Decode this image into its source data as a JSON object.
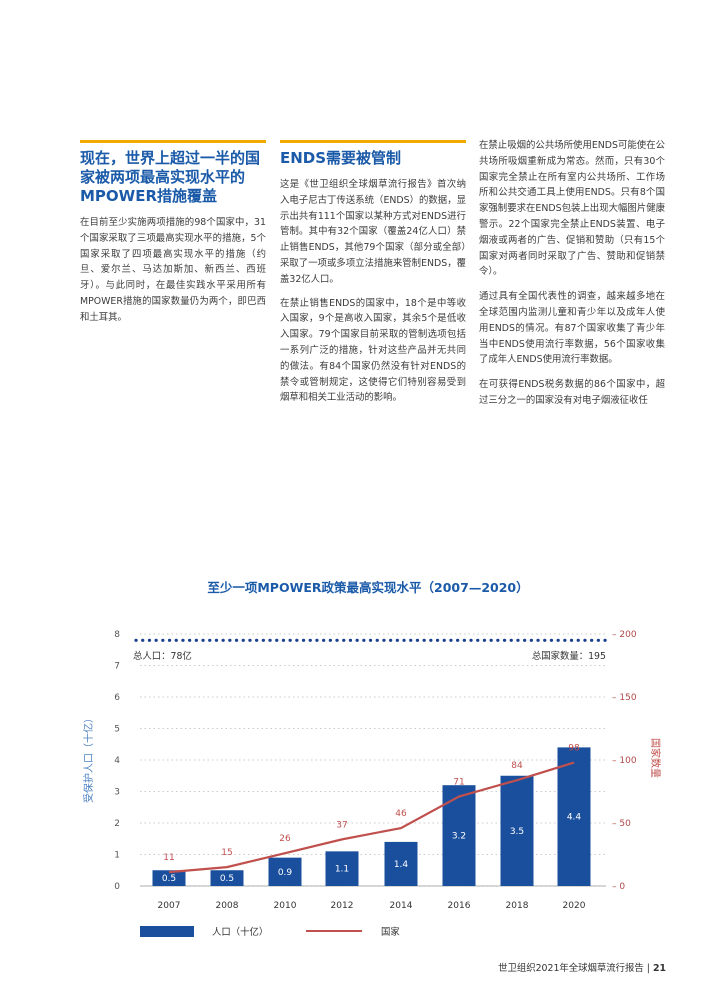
{
  "columns": [
    {
      "heading": "现在，世界上超过一半的国家被两项最高实现水平的MPOWER措施覆盖",
      "paragraphs": [
        "在目前至少实施两项措施的98个国家中，31个国家采取了三项最高实现水平的措施，5个国家采取了四项最高实现水平的措施（约旦、爱尔兰、马达加斯加、新西兰、西班牙）。与此同时，在最佳实践水平采用所有MPOWER措施的国家数量仍为两个，即巴西和土耳其。"
      ]
    },
    {
      "heading": "ENDS需要被管制",
      "paragraphs": [
        "这是《世卫组织全球烟草流行报告》首次纳入电子尼古丁传送系统（ENDS）的数据，显示出共有111个国家以某种方式对ENDS进行管制。其中有32个国家（覆盖24亿人口）禁止销售ENDS，其他79个国家（部分或全部）采取了一项或多项立法措施来管制ENDS，覆盖32亿人口。",
        "在禁止销售ENDS的国家中，18个是中等收入国家，9个是高收入国家，其余5个是低收入国家。79个国家目前采取的管制选项包括一系列广泛的措施，针对这些产品并无共同的做法。有84个国家仍然没有针对ENDS的禁令或管制规定，这使得它们特别容易受到烟草和相关工业活动的影响。"
      ]
    },
    {
      "heading": "",
      "paragraphs": [
        "在禁止吸烟的公共场所使用ENDS可能使在公共场所吸烟重新成为常态。然而，只有30个国家完全禁止在所有室内公共场所、工作场所和公共交通工具上使用ENDS。只有8个国家强制要求在ENDS包装上出现大幅图片健康警示。22个国家完全禁止ENDS装置、电子烟液或两者的广告、促销和赞助（只有15个国家对两者同时采取了广告、赞助和促销禁令）。",
        "通过具有全国代表性的调查，越来越多地在全球范围内监测儿童和青少年以及成年人使用ENDS的情况。有87个国家收集了青少年当中ENDS使用流行率数据，56个国家收集了成年人ENDS使用流行率数据。",
        "在可获得ENDS税务数据的86个国家中，超过三分之一的国家没有对电子烟液征收任"
      ]
    }
  ],
  "chart_data": {
    "type": "bar",
    "title": "至少一项MPOWER政策最高实现水平（2007—2020）",
    "categories": [
      "2007",
      "2008",
      "2010",
      "2012",
      "2014",
      "2016",
      "2018",
      "2020"
    ],
    "series": [
      {
        "name": "人口（十亿）",
        "kind": "bar",
        "axis": "left",
        "color": "#1a4f9e",
        "values": [
          0.5,
          0.5,
          0.9,
          1.1,
          1.4,
          3.2,
          3.5,
          4.4
        ],
        "labels": [
          "0.5",
          "0.5",
          "0.9",
          "1.1",
          "1.4",
          "3.2",
          "3.5",
          "4.4"
        ]
      },
      {
        "name": "国家",
        "kind": "line",
        "axis": "right",
        "color": "#c0504d",
        "values": [
          11,
          15,
          26,
          37,
          46,
          71,
          84,
          98
        ],
        "labels": [
          "11",
          "15",
          "26",
          "37",
          "46",
          "71",
          "84",
          "98"
        ]
      }
    ],
    "ylabel": "受保护人口（十亿）",
    "y2label": "国家数量",
    "ylim": [
      0,
      8
    ],
    "y2lim": [
      0,
      200
    ],
    "yticks": [
      "0",
      "1",
      "2",
      "3",
      "4",
      "5",
      "6",
      "7",
      "8"
    ],
    "y2ticks": [
      "0",
      "50",
      "100",
      "150",
      "200"
    ],
    "reference": {
      "population_label": "总人口：78亿",
      "countries_label": "总国家数量：195",
      "value_left": 7.8,
      "value_right": 195
    },
    "legend": {
      "placement": "bottom",
      "bar_label": "人口（十亿）",
      "line_label": "国家"
    }
  },
  "footer": {
    "text": "世卫组织2021年全球烟草流行报告",
    "separator": "|",
    "page": "21"
  }
}
